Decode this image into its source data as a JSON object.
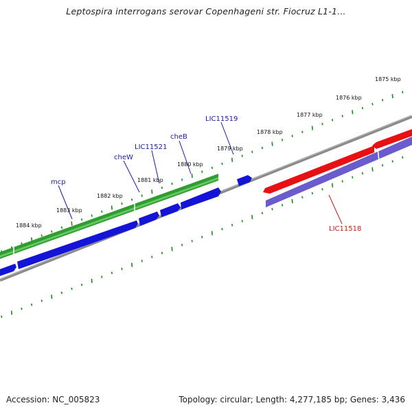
{
  "title": "Leptospira interrogans serovar Copenhageni str. Fiocruz L1-1...",
  "footer": {
    "accession": "Accession: NC_005823",
    "summary": "Topology: circular; Length: 4,277,185 bp; Genes: 3,436"
  },
  "colors": {
    "backbone": "#8a8a8a",
    "ticks": "#1a8a1a",
    "gene_green": "#2f9e2f",
    "gene_blue": "#1414d8",
    "gene_red": "#e81010",
    "gene_purple": "#6a5ccc",
    "label_blue": "#1a1aa0",
    "label_red": "#c81818"
  },
  "scale": {
    "unit": "kbp",
    "tick_labels": [
      "1884 kbp",
      "1883 kbp",
      "1882 kbp",
      "1881 kbp",
      "1880 kbp",
      "1879 kbp",
      "1878 kbp",
      "1877 kbp",
      "1876 kbp",
      "1875 kbp"
    ]
  },
  "genes": [
    {
      "name": "mcp",
      "strand": "-",
      "color": "blue"
    },
    {
      "name": "cheW",
      "strand": "-",
      "color": "blue"
    },
    {
      "name": "LIC11521",
      "strand": "-",
      "color": "blue"
    },
    {
      "name": "cheB",
      "strand": "-",
      "color": "blue"
    },
    {
      "name": "LIC11519",
      "strand": "-",
      "color": "blue"
    },
    {
      "name": "LIC11518",
      "strand": "+",
      "color": "red"
    }
  ]
}
